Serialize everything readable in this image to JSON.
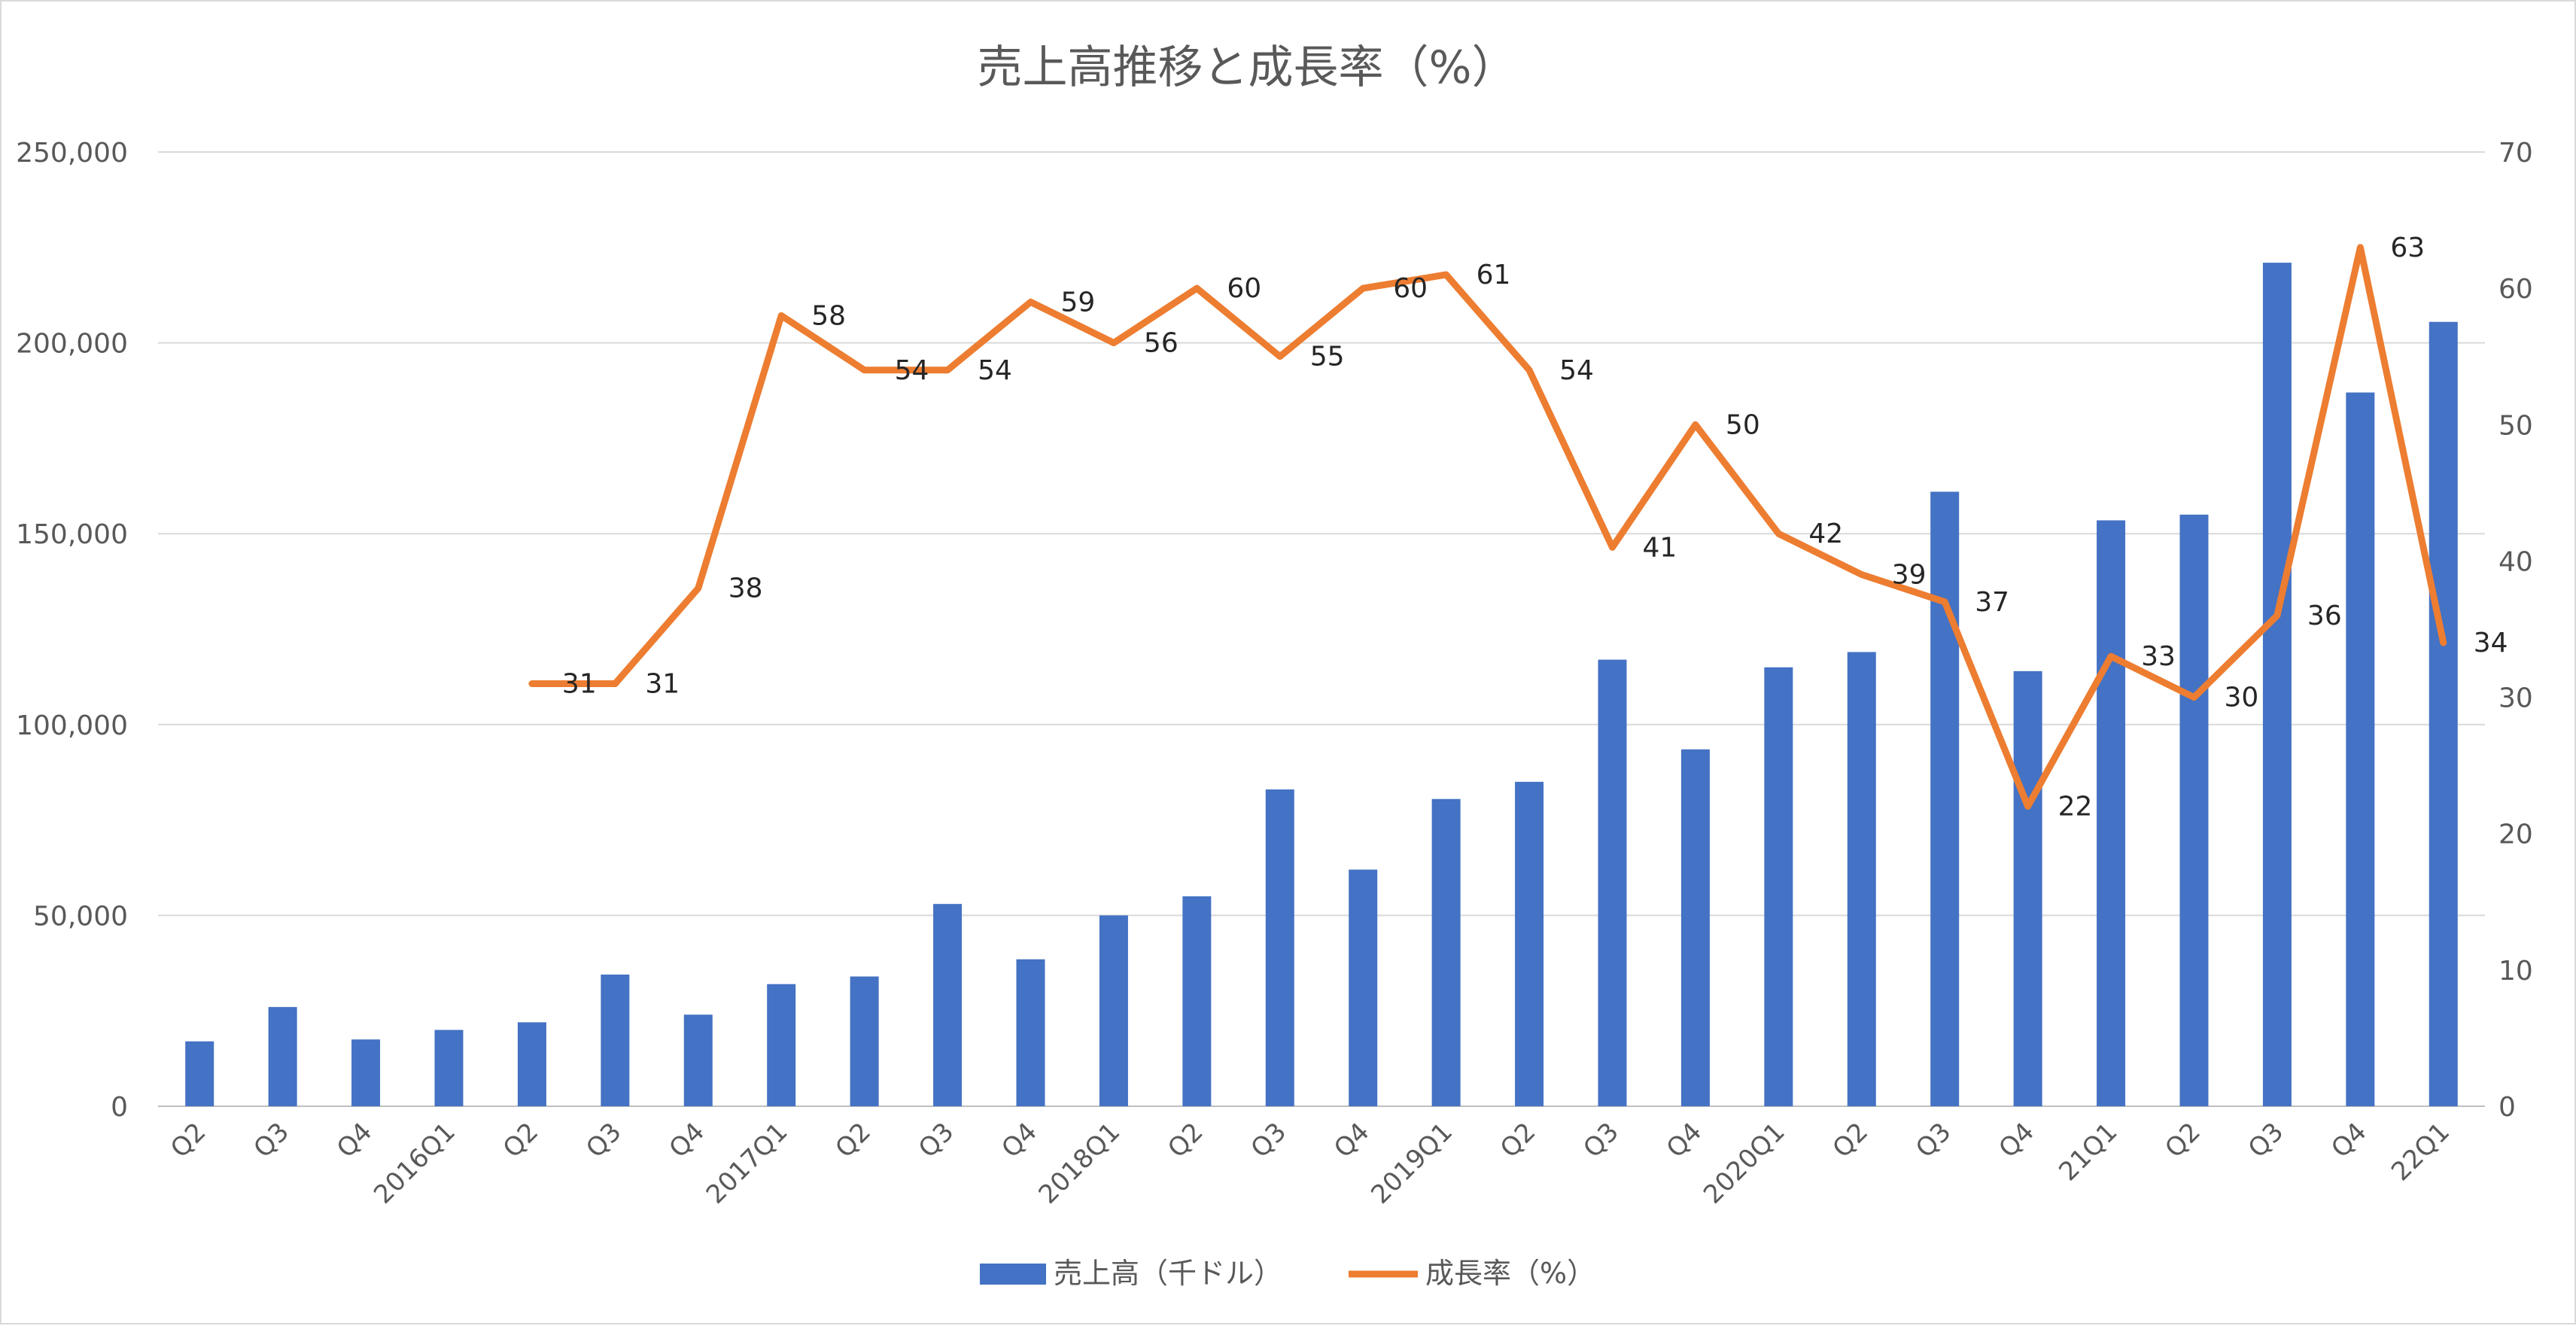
{
  "chart_data": {
    "type": "bar+line",
    "title": "売上高推移と成長率（%）",
    "categories": [
      "Q2",
      "Q3",
      "Q4",
      "2016Q1",
      "Q2",
      "Q3",
      "Q4",
      "2017Q1",
      "Q2",
      "Q3",
      "Q4",
      "2018Q1",
      "Q2",
      "Q3",
      "Q4",
      "2019Q1",
      "Q2",
      "Q3",
      "Q4",
      "2020Q1",
      "Q2",
      "Q3",
      "Q4",
      "21Q1",
      "Q2",
      "Q3",
      "Q4",
      "22Q1"
    ],
    "series": [
      {
        "name": "売上高（千ドル）",
        "type": "bar",
        "axis": "left",
        "color": "#4472c4",
        "values": [
          17000,
          26000,
          17500,
          20000,
          22000,
          34500,
          24000,
          32000,
          34000,
          53000,
          38500,
          50000,
          55000,
          83000,
          62000,
          80500,
          85000,
          117000,
          93500,
          115000,
          119000,
          161000,
          114000,
          153500,
          155000,
          221000,
          187000,
          205500
        ]
      },
      {
        "name": "成長率（%）",
        "type": "line",
        "axis": "right",
        "color": "#ed7d31",
        "values": [
          null,
          null,
          null,
          null,
          31,
          31,
          38,
          58,
          54,
          54,
          59,
          56,
          60,
          55,
          60,
          61,
          54,
          41,
          50,
          42,
          39,
          37,
          22,
          33,
          30,
          36,
          63,
          34
        ],
        "labels": [
          "",
          "",
          "",
          "",
          "31",
          "31",
          "38",
          "58",
          "54",
          "54",
          "59",
          "56",
          "60",
          "55",
          "60",
          "61",
          "54",
          "41",
          "50",
          "42",
          "39",
          "37",
          "22",
          "33",
          "30",
          "36",
          "63",
          "34"
        ]
      }
    ],
    "y_left": {
      "ylim": [
        0,
        250000
      ],
      "ticks": [
        "0",
        "50,000",
        "100,000",
        "150,000",
        "200,000",
        "250,000"
      ]
    },
    "y_right": {
      "ylim": [
        0,
        70
      ],
      "ticks": [
        "0",
        "10",
        "20",
        "30",
        "40",
        "50",
        "60",
        "70"
      ]
    },
    "grid": true,
    "legend": "bottom-center",
    "legend_labels": [
      "売上高（千ドル）",
      "成長率（%）"
    ]
  }
}
